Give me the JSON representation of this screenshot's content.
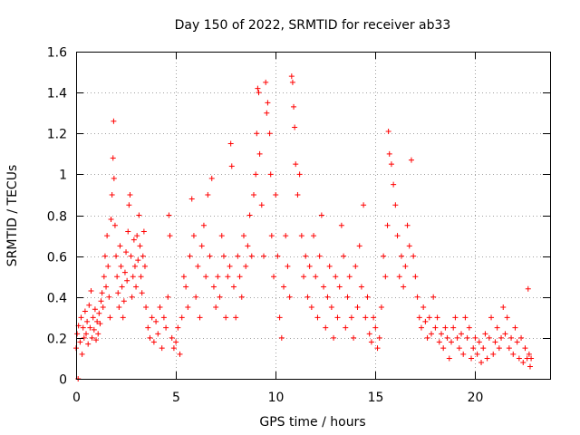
{
  "chart_data": {
    "type": "scatter",
    "title": "Day 150 of 2022, SRMTID for receiver ab33",
    "xlabel": "GPS time / hours",
    "ylabel": "SRMTID / TECUs",
    "xlim": [
      0,
      23.75
    ],
    "ylim": [
      0,
      1.6
    ],
    "x_ticks": [
      0,
      5,
      10,
      15,
      20
    ],
    "y_ticks": [
      0,
      0.2,
      0.4,
      0.6,
      0.8,
      1,
      1.2,
      1.4,
      1.6
    ],
    "x_tick_labels": [
      "0",
      "5",
      "10",
      "15",
      "20"
    ],
    "y_tick_labels": [
      "0",
      "0.2",
      "0.4",
      "0.6",
      "0.8",
      "1",
      "1.2",
      "1.4",
      "1.6"
    ],
    "grid": true,
    "marker": "+",
    "marker_color": "#ff0000",
    "series": [
      {
        "name": "SRMTID",
        "points": [
          [
            0.0,
            0.15
          ],
          [
            0.05,
            0.22
          ],
          [
            0.1,
            0.0
          ],
          [
            0.12,
            0.26
          ],
          [
            0.2,
            0.18
          ],
          [
            0.25,
            0.3
          ],
          [
            0.3,
            0.12
          ],
          [
            0.35,
            0.25
          ],
          [
            0.4,
            0.2
          ],
          [
            0.45,
            0.33
          ],
          [
            0.5,
            0.22
          ],
          [
            0.55,
            0.28
          ],
          [
            0.6,
            0.17
          ],
          [
            0.65,
            0.36
          ],
          [
            0.7,
            0.25
          ],
          [
            0.75,
            0.43
          ],
          [
            0.8,
            0.2
          ],
          [
            0.85,
            0.3
          ],
          [
            0.9,
            0.24
          ],
          [
            0.95,
            0.34
          ],
          [
            1.0,
            0.19
          ],
          [
            1.05,
            0.28
          ],
          [
            1.1,
            0.22
          ],
          [
            1.15,
            0.32
          ],
          [
            1.2,
            0.27
          ],
          [
            1.25,
            0.38
          ],
          [
            1.3,
            0.42
          ],
          [
            1.35,
            0.35
          ],
          [
            1.4,
            0.5
          ],
          [
            1.45,
            0.6
          ],
          [
            1.5,
            0.45
          ],
          [
            1.55,
            0.7
          ],
          [
            1.6,
            0.55
          ],
          [
            1.65,
            0.4
          ],
          [
            1.7,
            0.3
          ],
          [
            1.75,
            0.78
          ],
          [
            1.8,
            0.9
          ],
          [
            1.85,
            1.08
          ],
          [
            1.88,
            1.26
          ],
          [
            1.9,
            0.98
          ],
          [
            1.95,
            0.75
          ],
          [
            2.0,
            0.6
          ],
          [
            2.05,
            0.5
          ],
          [
            2.1,
            0.42
          ],
          [
            2.15,
            0.35
          ],
          [
            2.2,
            0.65
          ],
          [
            2.25,
            0.55
          ],
          [
            2.3,
            0.45
          ],
          [
            2.35,
            0.3
          ],
          [
            2.4,
            0.38
          ],
          [
            2.45,
            0.52
          ],
          [
            2.5,
            0.62
          ],
          [
            2.55,
            0.48
          ],
          [
            2.6,
            0.72
          ],
          [
            2.65,
            0.85
          ],
          [
            2.7,
            0.9
          ],
          [
            2.75,
            0.6
          ],
          [
            2.8,
            0.4
          ],
          [
            2.85,
            0.5
          ],
          [
            2.9,
            0.68
          ],
          [
            2.95,
            0.55
          ],
          [
            3.0,
            0.45
          ],
          [
            3.05,
            0.7
          ],
          [
            3.1,
            0.58
          ],
          [
            3.15,
            0.8
          ],
          [
            3.2,
            0.65
          ],
          [
            3.25,
            0.5
          ],
          [
            3.3,
            0.42
          ],
          [
            3.35,
            0.6
          ],
          [
            3.4,
            0.72
          ],
          [
            3.45,
            0.55
          ],
          [
            3.5,
            0.35
          ],
          [
            3.6,
            0.25
          ],
          [
            3.7,
            0.2
          ],
          [
            3.8,
            0.3
          ],
          [
            3.9,
            0.18
          ],
          [
            4.0,
            0.28
          ],
          [
            4.1,
            0.22
          ],
          [
            4.2,
            0.35
          ],
          [
            4.3,
            0.15
          ],
          [
            4.4,
            0.3
          ],
          [
            4.5,
            0.25
          ],
          [
            4.6,
            0.4
          ],
          [
            4.65,
            0.8
          ],
          [
            4.7,
            0.7
          ],
          [
            4.8,
            0.2
          ],
          [
            4.9,
            0.15
          ],
          [
            5.0,
            0.18
          ],
          [
            5.1,
            0.25
          ],
          [
            5.2,
            0.12
          ],
          [
            5.3,
            0.3
          ],
          [
            5.4,
            0.5
          ],
          [
            5.5,
            0.45
          ],
          [
            5.6,
            0.35
          ],
          [
            5.7,
            0.6
          ],
          [
            5.8,
            0.88
          ],
          [
            5.9,
            0.7
          ],
          [
            6.0,
            0.4
          ],
          [
            6.1,
            0.55
          ],
          [
            6.2,
            0.3
          ],
          [
            6.3,
            0.65
          ],
          [
            6.4,
            0.75
          ],
          [
            6.5,
            0.5
          ],
          [
            6.6,
            0.9
          ],
          [
            6.7,
            0.6
          ],
          [
            6.8,
            0.98
          ],
          [
            6.9,
            0.45
          ],
          [
            7.0,
            0.35
          ],
          [
            7.1,
            0.5
          ],
          [
            7.2,
            0.4
          ],
          [
            7.3,
            0.7
          ],
          [
            7.4,
            0.6
          ],
          [
            7.5,
            0.3
          ],
          [
            7.6,
            0.5
          ],
          [
            7.7,
            0.55
          ],
          [
            7.75,
            1.15
          ],
          [
            7.8,
            1.04
          ],
          [
            7.9,
            0.45
          ],
          [
            8.0,
            0.3
          ],
          [
            8.1,
            0.6
          ],
          [
            8.2,
            0.5
          ],
          [
            8.3,
            0.4
          ],
          [
            8.4,
            0.7
          ],
          [
            8.5,
            0.55
          ],
          [
            8.6,
            0.65
          ],
          [
            8.7,
            0.8
          ],
          [
            8.8,
            0.6
          ],
          [
            8.9,
            0.9
          ],
          [
            9.0,
            1.0
          ],
          [
            9.05,
            1.2
          ],
          [
            9.1,
            1.42
          ],
          [
            9.15,
            1.4
          ],
          [
            9.2,
            1.1
          ],
          [
            9.3,
            0.85
          ],
          [
            9.4,
            0.6
          ],
          [
            9.5,
            1.45
          ],
          [
            9.55,
            1.3
          ],
          [
            9.6,
            1.35
          ],
          [
            9.7,
            1.2
          ],
          [
            9.75,
            1.0
          ],
          [
            9.8,
            0.7
          ],
          [
            9.9,
            0.5
          ],
          [
            10.0,
            0.9
          ],
          [
            10.1,
            0.6
          ],
          [
            10.2,
            0.3
          ],
          [
            10.3,
            0.2
          ],
          [
            10.4,
            0.45
          ],
          [
            10.5,
            0.7
          ],
          [
            10.6,
            0.55
          ],
          [
            10.7,
            0.4
          ],
          [
            10.8,
            1.48
          ],
          [
            10.85,
            1.45
          ],
          [
            10.9,
            1.33
          ],
          [
            10.95,
            1.23
          ],
          [
            11.0,
            1.05
          ],
          [
            11.1,
            0.9
          ],
          [
            11.2,
            1.0
          ],
          [
            11.3,
            0.7
          ],
          [
            11.4,
            0.5
          ],
          [
            11.5,
            0.6
          ],
          [
            11.6,
            0.4
          ],
          [
            11.7,
            0.55
          ],
          [
            11.8,
            0.35
          ],
          [
            11.9,
            0.7
          ],
          [
            12.0,
            0.5
          ],
          [
            12.1,
            0.3
          ],
          [
            12.2,
            0.6
          ],
          [
            12.3,
            0.8
          ],
          [
            12.4,
            0.45
          ],
          [
            12.5,
            0.25
          ],
          [
            12.6,
            0.4
          ],
          [
            12.7,
            0.55
          ],
          [
            12.8,
            0.35
          ],
          [
            12.9,
            0.2
          ],
          [
            13.0,
            0.5
          ],
          [
            13.1,
            0.3
          ],
          [
            13.2,
            0.45
          ],
          [
            13.3,
            0.75
          ],
          [
            13.4,
            0.6
          ],
          [
            13.5,
            0.25
          ],
          [
            13.6,
            0.4
          ],
          [
            13.7,
            0.5
          ],
          [
            13.8,
            0.3
          ],
          [
            13.9,
            0.2
          ],
          [
            14.0,
            0.55
          ],
          [
            14.1,
            0.35
          ],
          [
            14.2,
            0.65
          ],
          [
            14.3,
            0.45
          ],
          [
            14.4,
            0.85
          ],
          [
            14.5,
            0.3
          ],
          [
            14.6,
            0.4
          ],
          [
            14.7,
            0.22
          ],
          [
            14.8,
            0.18
          ],
          [
            14.9,
            0.3
          ],
          [
            15.0,
            0.25
          ],
          [
            15.1,
            0.15
          ],
          [
            15.2,
            0.2
          ],
          [
            15.3,
            0.35
          ],
          [
            15.4,
            0.6
          ],
          [
            15.5,
            0.5
          ],
          [
            15.6,
            0.75
          ],
          [
            15.65,
            1.21
          ],
          [
            15.7,
            1.1
          ],
          [
            15.8,
            1.05
          ],
          [
            15.9,
            0.95
          ],
          [
            16.0,
            0.85
          ],
          [
            16.1,
            0.7
          ],
          [
            16.2,
            0.5
          ],
          [
            16.3,
            0.6
          ],
          [
            16.4,
            0.45
          ],
          [
            16.5,
            0.55
          ],
          [
            16.6,
            0.75
          ],
          [
            16.7,
            0.65
          ],
          [
            16.8,
            1.07
          ],
          [
            16.9,
            0.6
          ],
          [
            17.0,
            0.5
          ],
          [
            17.1,
            0.4
          ],
          [
            17.2,
            0.3
          ],
          [
            17.3,
            0.25
          ],
          [
            17.4,
            0.35
          ],
          [
            17.5,
            0.28
          ],
          [
            17.6,
            0.2
          ],
          [
            17.7,
            0.3
          ],
          [
            17.8,
            0.22
          ],
          [
            17.9,
            0.4
          ],
          [
            18.0,
            0.25
          ],
          [
            18.1,
            0.3
          ],
          [
            18.2,
            0.18
          ],
          [
            18.3,
            0.22
          ],
          [
            18.4,
            0.15
          ],
          [
            18.5,
            0.25
          ],
          [
            18.6,
            0.2
          ],
          [
            18.7,
            0.1
          ],
          [
            18.8,
            0.18
          ],
          [
            18.9,
            0.25
          ],
          [
            19.0,
            0.3
          ],
          [
            19.1,
            0.2
          ],
          [
            19.2,
            0.15
          ],
          [
            19.3,
            0.22
          ],
          [
            19.4,
            0.12
          ],
          [
            19.5,
            0.3
          ],
          [
            19.6,
            0.2
          ],
          [
            19.7,
            0.25
          ],
          [
            19.8,
            0.1
          ],
          [
            19.9,
            0.15
          ],
          [
            20.0,
            0.2
          ],
          [
            20.1,
            0.12
          ],
          [
            20.2,
            0.18
          ],
          [
            20.3,
            0.08
          ],
          [
            20.4,
            0.15
          ],
          [
            20.5,
            0.22
          ],
          [
            20.6,
            0.1
          ],
          [
            20.7,
            0.2
          ],
          [
            20.8,
            0.3
          ],
          [
            20.9,
            0.12
          ],
          [
            21.0,
            0.18
          ],
          [
            21.1,
            0.25
          ],
          [
            21.2,
            0.15
          ],
          [
            21.3,
            0.2
          ],
          [
            21.4,
            0.35
          ],
          [
            21.5,
            0.22
          ],
          [
            21.6,
            0.3
          ],
          [
            21.7,
            0.15
          ],
          [
            21.8,
            0.2
          ],
          [
            21.9,
            0.12
          ],
          [
            22.0,
            0.25
          ],
          [
            22.1,
            0.18
          ],
          [
            22.2,
            0.1
          ],
          [
            22.3,
            0.2
          ],
          [
            22.4,
            0.08
          ],
          [
            22.5,
            0.15
          ],
          [
            22.6,
            0.1
          ],
          [
            22.65,
            0.44
          ],
          [
            22.7,
            0.12
          ],
          [
            22.75,
            0.06
          ],
          [
            22.8,
            0.1
          ]
        ]
      }
    ]
  }
}
